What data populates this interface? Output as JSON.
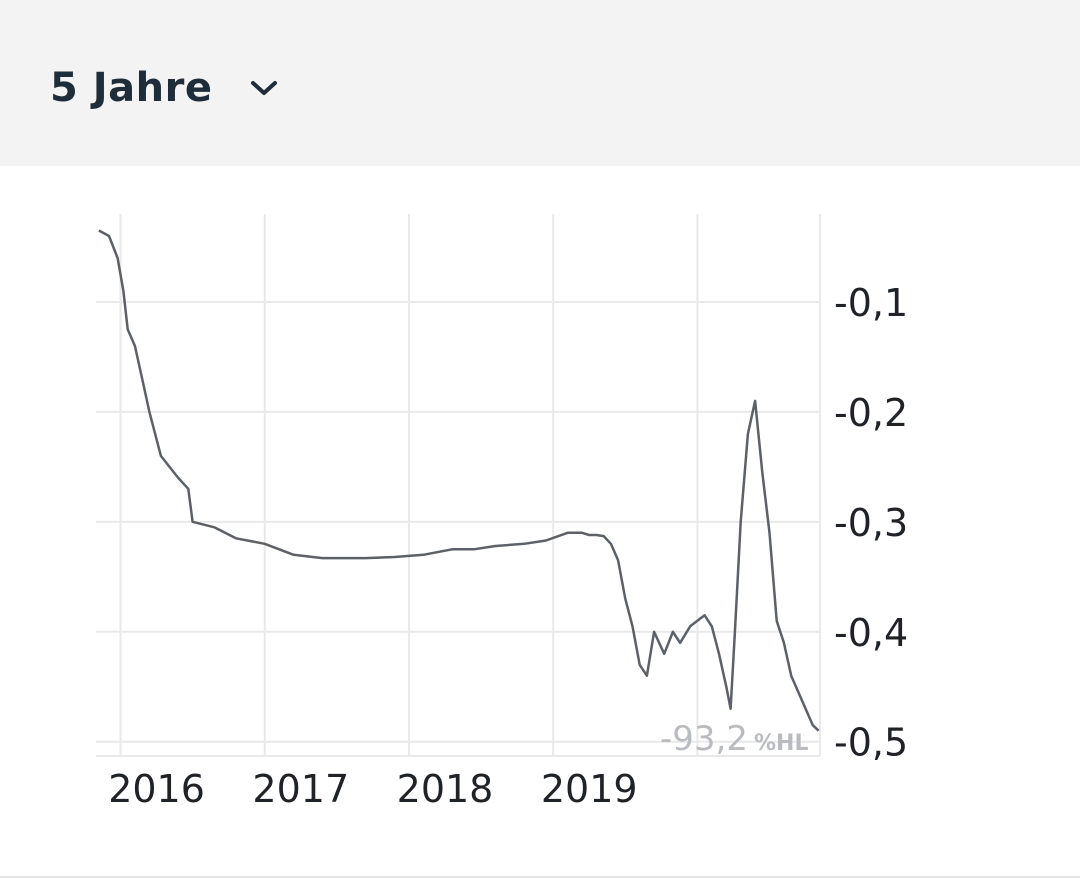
{
  "header": {
    "period_label": "5 Jahre",
    "chevron_icon": "chevron-down-icon"
  },
  "chart_data": {
    "type": "line",
    "title": "",
    "xlabel": "",
    "ylabel": "",
    "x_ticks": [
      "2016",
      "2017",
      "2018",
      "2019"
    ],
    "y_ticks": [
      "-0,1",
      "-0,2",
      "-0,3",
      "-0,4",
      "-0,5"
    ],
    "xlim": [
      2015.33,
      2020.35
    ],
    "ylim": [
      -0.513,
      -0.02
    ],
    "grid": true,
    "line_color": "#5b6166",
    "annotation": {
      "value": "-93,2",
      "unit": "%HL"
    },
    "series": [
      {
        "x": [
          2015.35,
          2015.42,
          2015.48,
          2015.52,
          2015.55,
          2015.6,
          2015.65,
          2015.7,
          2015.78,
          2015.9,
          2015.97,
          2016.0,
          2016.15,
          2016.3,
          2016.5,
          2016.7,
          2016.9,
          2017.0,
          2017.2,
          2017.4,
          2017.6,
          2017.8,
          2017.95,
          2018.1,
          2018.3,
          2018.45,
          2018.6,
          2018.7,
          2018.75,
          2018.8,
          2018.85,
          2018.9,
          2018.95,
          2019.0,
          2019.05,
          2019.1,
          2019.15,
          2019.2,
          2019.27,
          2019.33,
          2019.38,
          2019.45,
          2019.5,
          2019.55,
          2019.6,
          2019.65,
          2019.7,
          2019.73,
          2019.76,
          2019.8,
          2019.85,
          2019.9,
          2019.95,
          2020.0,
          2020.05,
          2020.1,
          2020.15,
          2020.2,
          2020.25,
          2020.3,
          2020.34
        ],
        "y": [
          -0.035,
          -0.04,
          -0.06,
          -0.09,
          -0.125,
          -0.14,
          -0.17,
          -0.2,
          -0.24,
          -0.26,
          -0.27,
          -0.3,
          -0.305,
          -0.315,
          -0.32,
          -0.33,
          -0.333,
          -0.333,
          -0.333,
          -0.332,
          -0.33,
          -0.325,
          -0.325,
          -0.322,
          -0.32,
          -0.317,
          -0.31,
          -0.31,
          -0.312,
          -0.312,
          -0.313,
          -0.32,
          -0.335,
          -0.37,
          -0.395,
          -0.43,
          -0.44,
          -0.4,
          -0.42,
          -0.4,
          -0.41,
          -0.395,
          -0.39,
          -0.385,
          -0.395,
          -0.42,
          -0.45,
          -0.47,
          -0.4,
          -0.3,
          -0.22,
          -0.19,
          -0.255,
          -0.31,
          -0.39,
          -0.41,
          -0.44,
          -0.455,
          -0.47,
          -0.485,
          -0.49
        ]
      }
    ]
  }
}
